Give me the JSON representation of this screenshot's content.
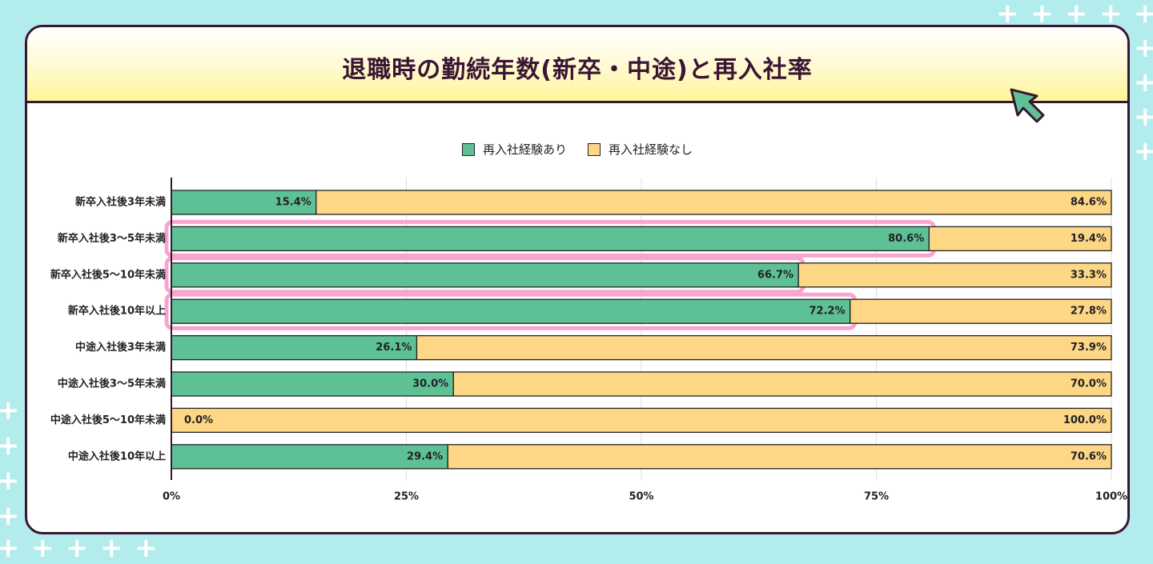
{
  "title": "退職時の勤続年数(新卒・中途)と再入社率",
  "colors": {
    "background": "#b2ecec",
    "rehired": "#5ec195",
    "not_rehired": "#fdd686",
    "highlight": "#f7a5cf",
    "border": "#3a1532"
  },
  "chart_data": {
    "type": "bar",
    "orientation": "horizontal",
    "stacked": true,
    "title": "退職時の勤続年数(新卒・中途)と再入社率",
    "categories": [
      "新卒入社後3年未満",
      "新卒入社後3～5年未満",
      "新卒入社後5～10年未満",
      "新卒入社後10年以上",
      "中途入社後3年未満",
      "中途入社後3～5年未満",
      "中途入社後5～10年未満",
      "中途入社後10年以上"
    ],
    "series": [
      {
        "name": "再入社経験あり",
        "color": "#5ec195",
        "values": [
          15.4,
          80.6,
          66.7,
          72.2,
          26.1,
          30.0,
          0.0,
          29.4
        ]
      },
      {
        "name": "再入社経験なし",
        "color": "#fdd686",
        "values": [
          84.6,
          19.4,
          33.3,
          27.8,
          73.9,
          70.0,
          100.0,
          70.6
        ]
      }
    ],
    "data_labels": {
      "rehired": [
        "15.4%",
        "80.6%",
        "66.7%",
        "72.2%",
        "26.1%",
        "30.0%",
        "0.0%",
        "29.4%"
      ],
      "not_rehired": [
        "84.6%",
        "19.4%",
        "33.3%",
        "27.8%",
        "73.9%",
        "70.0%",
        "100.0%",
        "70.6%"
      ]
    },
    "xlim": [
      0,
      100
    ],
    "xticks": [
      "0%",
      "25%",
      "50%",
      "75%",
      "100%"
    ],
    "xtick_values": [
      0,
      25,
      50,
      75,
      100
    ],
    "grid": true,
    "legend_position": "top-center",
    "highlighted_categories": [
      "新卒入社後3～5年未満",
      "新卒入社後5～10年未満",
      "新卒入社後10年以上"
    ]
  }
}
